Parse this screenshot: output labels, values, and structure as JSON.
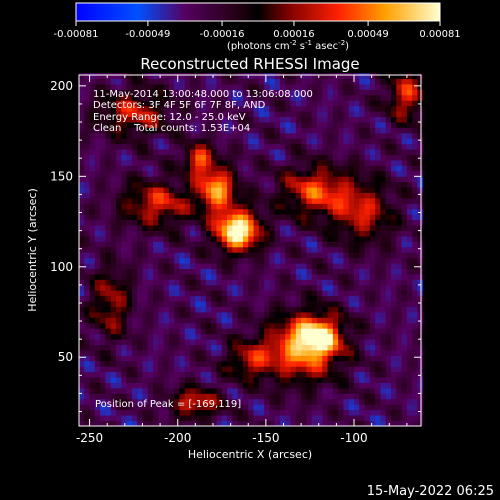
{
  "chart_data": {
    "type": "heatmap",
    "title": "Reconstructed RHESSI Image",
    "colorbar": {
      "ticks": [
        "-0.00081",
        "-0.00049",
        "-0.00016",
        "0.00016",
        "0.00049",
        "0.00081"
      ],
      "tick_values": [
        -0.00081,
        -0.00049,
        -0.00016,
        0.00016,
        0.00049,
        0.00081
      ],
      "range": [
        -0.00081,
        0.00081
      ],
      "unit_main": "(photons cm",
      "unit_sup1": "-2",
      "unit_mid": " s",
      "unit_sup2": "-1",
      "unit_end": " asec",
      "unit_sup3": "-2",
      "unit_close": ")"
    },
    "annotations": [
      "11-May-2014 13:00:48.000 to 13:06:08.000",
      "Detectors: 3F 4F 5F 6F 7F 8F, AND",
      "Energy Range: 12.0 - 25.0 keV",
      "Clean    Total counts: 1.53E+04"
    ],
    "peak_label": "Position of Peak = [-169,119]",
    "peak": [
      -169,
      119
    ],
    "xlabel": "Heliocentric X (arcsec)",
    "ylabel": "Heliocentric Y (arcsec)",
    "xlim": [
      -256,
      -62
    ],
    "ylim": [
      12,
      206
    ],
    "xticks": [
      -250,
      -200,
      -150,
      -100
    ],
    "xtick_labels": [
      "-250",
      "-200",
      "-150",
      "-100"
    ],
    "yticks": [
      50,
      100,
      150,
      200
    ],
    "ytick_labels": [
      "50",
      "100",
      "150",
      "200"
    ],
    "sources": [
      {
        "x": -166,
        "y": 120,
        "amp": 1.0,
        "sx": 9,
        "sy": 8
      },
      {
        "x": -178,
        "y": 143,
        "amp": 0.7,
        "sx": 8,
        "sy": 9
      },
      {
        "x": -188,
        "y": 160,
        "amp": 0.55,
        "sx": 6,
        "sy": 6
      },
      {
        "x": -212,
        "y": 135,
        "amp": 0.5,
        "sx": 14,
        "sy": 9
      },
      {
        "x": -122,
        "y": 142,
        "amp": 0.55,
        "sx": 14,
        "sy": 10
      },
      {
        "x": -95,
        "y": 130,
        "amp": 0.45,
        "sx": 12,
        "sy": 12
      },
      {
        "x": -130,
        "y": 55,
        "amp": 0.65,
        "sx": 16,
        "sy": 13
      },
      {
        "x": -120,
        "y": 62,
        "amp": 0.6,
        "sx": 9,
        "sy": 8
      },
      {
        "x": -160,
        "y": 48,
        "amp": 0.4,
        "sx": 9,
        "sy": 7
      },
      {
        "x": -238,
        "y": 80,
        "amp": 0.4,
        "sx": 8,
        "sy": 14
      },
      {
        "x": -225,
        "y": 185,
        "amp": 0.45,
        "sx": 14,
        "sy": 9
      },
      {
        "x": -70,
        "y": 195,
        "amp": 0.5,
        "sx": 8,
        "sy": 10
      },
      {
        "x": -190,
        "y": 25,
        "amp": 0.5,
        "sx": 10,
        "sy": 6
      }
    ]
  },
  "footer": {
    "date": "15-May-2022 06:25"
  }
}
